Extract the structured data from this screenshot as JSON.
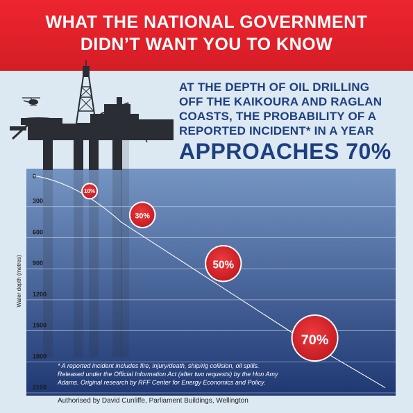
{
  "banner": {
    "line1": "WHAT THE NATIONAL GOVERNMENT",
    "line2": "DIDN’T WANT YOU TO KNOW"
  },
  "intro_lines": [
    "AT THE DEPTH OF OIL DRILLING",
    "OFF THE KAIKOURA AND RAGLAN",
    "COASTS, THE PROBABILITY OF A",
    "REPORTED INCIDENT* IN A YEAR"
  ],
  "headline": "APPROACHES 70%",
  "footnote_lines": [
    "* A reported incident includes fire, injury/death, ship/rig collision, oil spills.",
    "Released under the Official Information Act (after two requests) by the Hon Amy",
    "Adams. Original research by RFF Center for Energy Economics and Policy."
  ],
  "authorised": "Authorised by David Cunliffe, Parliament Buildings, Wellington",
  "colors": {
    "banner_red": "#e3222b",
    "headline_blue": "#1d3f80",
    "background": "#dce8f2",
    "water_top": "#6f8fbe",
    "water_bottom": "#1f3873",
    "marker_red": "#d8232a",
    "rig_silhouette": "#2a2d33"
  },
  "icons": [
    "helicopter-icon",
    "oil-rig-icon"
  ],
  "chart_data": {
    "type": "line",
    "ylabel": "Water depth (metres)",
    "y_ticks": [
      0,
      300,
      600,
      900,
      1200,
      1500,
      1800,
      2100
    ],
    "y_tick_labels": [
      "0",
      "300",
      "600",
      "900",
      "1200",
      "1500",
      "1800",
      "2100"
    ],
    "ylim": [
      0,
      2100
    ],
    "y_inverted": true,
    "x_axis_shown": false,
    "x_range": [
      0,
      100
    ],
    "grid": true,
    "curve": {
      "x": [
        0,
        25,
        50,
        75,
        100
      ],
      "y": [
        0,
        450,
        1000,
        1550,
        2050
      ]
    },
    "points": [
      {
        "x": 16,
        "y": 150,
        "label": "10%",
        "probability": 10
      },
      {
        "x": 31,
        "y": 380,
        "label": "30%",
        "probability": 30
      },
      {
        "x": 54,
        "y": 850,
        "label": "50%",
        "probability": 50
      },
      {
        "x": 80,
        "y": 1570,
        "label": "70%",
        "probability": 70
      }
    ]
  }
}
